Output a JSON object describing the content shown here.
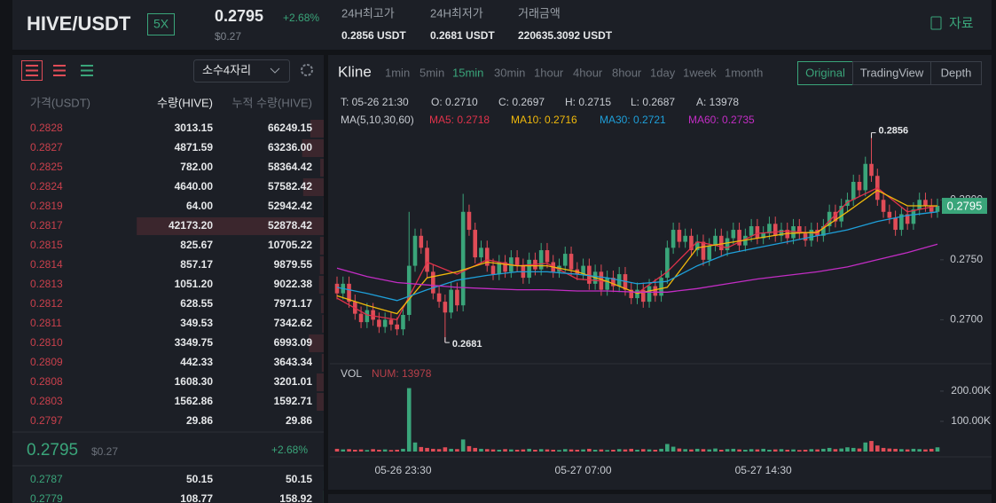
{
  "header": {
    "pair": "HIVE/USDT",
    "leverage": "5X",
    "price": "0.2795",
    "change": "+2.68%",
    "price_usd": "$0.27",
    "stats": [
      {
        "label": "24H최고가",
        "value": "0.2856 USDT"
      },
      {
        "label": "24H최저가",
        "value": "0.2681 USDT"
      },
      {
        "label": "거래금액",
        "value": "220635.3092 USDT"
      }
    ],
    "docs": "자료"
  },
  "orderbook": {
    "precision": "소수4자리",
    "columns": [
      "가격(USDT)",
      "수량(HIVE)",
      "누적 수량(HIVE)"
    ],
    "asks": [
      [
        "0.2828",
        "3013.15",
        "66249.15"
      ],
      [
        "0.2827",
        "4871.59",
        "63236.00"
      ],
      [
        "0.2825",
        "782.00",
        "58364.42"
      ],
      [
        "0.2824",
        "4640.00",
        "57582.42"
      ],
      [
        "0.2819",
        "64.00",
        "52942.42"
      ],
      [
        "0.2817",
        "42173.20",
        "52878.42"
      ],
      [
        "0.2815",
        "825.67",
        "10705.22"
      ],
      [
        "0.2814",
        "857.17",
        "9879.55"
      ],
      [
        "0.2813",
        "1051.20",
        "9022.38"
      ],
      [
        "0.2812",
        "628.55",
        "7971.17"
      ],
      [
        "0.2811",
        "349.53",
        "7342.62"
      ],
      [
        "0.2810",
        "3349.75",
        "6993.09"
      ],
      [
        "0.2809",
        "442.33",
        "3643.34"
      ],
      [
        "0.2808",
        "1608.30",
        "3201.01"
      ],
      [
        "0.2803",
        "1562.86",
        "1592.71"
      ],
      [
        "0.2797",
        "29.86",
        "29.86"
      ]
    ],
    "last": {
      "price": "0.2795",
      "usd": "$0.27",
      "change": "+2.68%"
    },
    "bids": [
      [
        "0.2787",
        "50.15",
        "50.15"
      ],
      [
        "0.2779",
        "108.77",
        "158.92"
      ]
    ]
  },
  "chart_panel": {
    "title": "Kline",
    "intervals": [
      "1min",
      "5min",
      "15min",
      "30min",
      "1hour",
      "4hour",
      "8hour",
      "1day",
      "1week",
      "1month"
    ],
    "active_interval": "15min",
    "views": [
      "Original",
      "TradingView",
      "Depth"
    ],
    "active_view": "Original",
    "info": [
      "T: 05-26 21:30",
      "O: 0.2710",
      "C: 0.2697",
      "H: 0.2715",
      "L: 0.2687",
      "A: 13978"
    ],
    "ma_title": "MA(5,10,30,60)"
  },
  "chart_data": {
    "type": "candlestick",
    "up_color": "#3aa57a",
    "down_color": "#e04c57",
    "categories": [
      null,
      null,
      null,
      null,
      null,
      null,
      null,
      null,
      null,
      null,
      null,
      "05-26 23:30",
      null,
      null,
      null,
      null,
      null,
      null,
      null,
      null,
      null,
      null,
      null,
      null,
      null,
      null,
      null,
      null,
      null,
      null,
      null,
      null,
      null,
      null,
      null,
      null,
      null,
      null,
      null,
      null,
      null,
      "05-27 07:00",
      null,
      null,
      null,
      null,
      null,
      null,
      null,
      null,
      null,
      null,
      null,
      null,
      null,
      null,
      null,
      null,
      null,
      null,
      null,
      null,
      null,
      null,
      null,
      null,
      null,
      null,
      null,
      null,
      null,
      "05-27 14:30",
      null,
      null,
      null,
      null,
      null,
      null,
      null,
      null,
      null,
      null,
      null,
      null,
      null,
      null,
      null,
      null,
      null,
      null,
      null,
      null,
      null,
      null,
      null,
      null,
      null,
      null,
      null,
      null,
      null
    ],
    "ohlc": [
      [
        0.273,
        0.2736,
        0.2717,
        0.2722
      ],
      [
        0.2722,
        0.2736,
        0.2717,
        0.273
      ],
      [
        0.273,
        0.2736,
        0.271,
        0.2715
      ],
      [
        0.2715,
        0.2721,
        0.27,
        0.2705
      ],
      [
        0.2705,
        0.2711,
        0.2693,
        0.2698
      ],
      [
        0.2698,
        0.2714,
        0.2693,
        0.2708
      ],
      [
        0.2708,
        0.2714,
        0.2695,
        0.27
      ],
      [
        0.27,
        0.2706,
        0.2689,
        0.2694
      ],
      [
        0.2694,
        0.2706,
        0.2689,
        0.27
      ],
      [
        0.27,
        0.2706,
        0.2691,
        0.2696
      ],
      [
        0.2696,
        0.2702,
        0.2687,
        0.2692
      ],
      [
        0.2692,
        0.271,
        0.2687,
        0.2704
      ],
      [
        0.2704,
        0.279,
        0.2699,
        0.2745
      ],
      [
        0.2745,
        0.2776,
        0.274,
        0.277
      ],
      [
        0.277,
        0.2776,
        0.2755,
        0.276
      ],
      [
        0.276,
        0.2766,
        0.2735,
        0.274
      ],
      [
        0.274,
        0.2746,
        0.2717,
        0.2722
      ],
      [
        0.2722,
        0.2728,
        0.271,
        0.2715
      ],
      [
        0.2715,
        0.2721,
        0.2681,
        0.2706
      ],
      [
        0.2706,
        0.2731,
        0.2701,
        0.2725
      ],
      [
        0.2725,
        0.2731,
        0.2707,
        0.2712
      ],
      [
        0.2712,
        0.2805,
        0.2707,
        0.279
      ],
      [
        0.279,
        0.2796,
        0.277,
        0.2775
      ],
      [
        0.2775,
        0.2781,
        0.2747,
        0.2752
      ],
      [
        0.2752,
        0.2766,
        0.2747,
        0.276
      ],
      [
        0.276,
        0.2766,
        0.274,
        0.2745
      ],
      [
        0.2745,
        0.2751,
        0.2733,
        0.2738
      ],
      [
        0.2738,
        0.2754,
        0.2733,
        0.2748
      ],
      [
        0.2748,
        0.2754,
        0.2735,
        0.274
      ],
      [
        0.274,
        0.2758,
        0.2735,
        0.2752
      ],
      [
        0.2752,
        0.2758,
        0.274,
        0.2745
      ],
      [
        0.2745,
        0.2751,
        0.273,
        0.2735
      ],
      [
        0.2735,
        0.2756,
        0.273,
        0.275
      ],
      [
        0.275,
        0.2756,
        0.2737,
        0.2742
      ],
      [
        0.2742,
        0.2764,
        0.2737,
        0.2758
      ],
      [
        0.2758,
        0.2764,
        0.2743,
        0.2748
      ],
      [
        0.2748,
        0.2754,
        0.2735,
        0.274
      ],
      [
        0.274,
        0.2751,
        0.2735,
        0.2745
      ],
      [
        0.2745,
        0.2761,
        0.274,
        0.2755
      ],
      [
        0.2755,
        0.2761,
        0.2737,
        0.2742
      ],
      [
        0.2742,
        0.2748,
        0.2733,
        0.2738
      ],
      [
        0.2738,
        0.2751,
        0.2733,
        0.2745
      ],
      [
        0.2745,
        0.2751,
        0.2725,
        0.273
      ],
      [
        0.273,
        0.2746,
        0.2725,
        0.274
      ],
      [
        0.274,
        0.2746,
        0.272,
        0.2725
      ],
      [
        0.2725,
        0.2741,
        0.272,
        0.2735
      ],
      [
        0.2735,
        0.2741,
        0.2723,
        0.2728
      ],
      [
        0.2728,
        0.2744,
        0.2723,
        0.2738
      ],
      [
        0.2738,
        0.2744,
        0.272,
        0.2725
      ],
      [
        0.2725,
        0.2731,
        0.2713,
        0.2718
      ],
      [
        0.2718,
        0.2731,
        0.2713,
        0.2725
      ],
      [
        0.2725,
        0.2731,
        0.271,
        0.2715
      ],
      [
        0.2715,
        0.2734,
        0.271,
        0.2728
      ],
      [
        0.2728,
        0.2734,
        0.2715,
        0.272
      ],
      [
        0.272,
        0.2741,
        0.2715,
        0.2735
      ],
      [
        0.2735,
        0.2766,
        0.273,
        0.276
      ],
      [
        0.276,
        0.2781,
        0.2755,
        0.2775
      ],
      [
        0.2775,
        0.2781,
        0.276,
        0.2765
      ],
      [
        0.2765,
        0.2776,
        0.276,
        0.277
      ],
      [
        0.277,
        0.2776,
        0.2753,
        0.2758
      ],
      [
        0.2758,
        0.2771,
        0.2753,
        0.2765
      ],
      [
        0.2765,
        0.2771,
        0.2745,
        0.275
      ],
      [
        0.275,
        0.2768,
        0.2745,
        0.2762
      ],
      [
        0.2762,
        0.2776,
        0.2757,
        0.277
      ],
      [
        0.277,
        0.2776,
        0.2753,
        0.2758
      ],
      [
        0.2758,
        0.2774,
        0.2753,
        0.2768
      ],
      [
        0.2768,
        0.2781,
        0.2763,
        0.2775
      ],
      [
        0.2775,
        0.2781,
        0.2757,
        0.2762
      ],
      [
        0.2762,
        0.2776,
        0.2757,
        0.277
      ],
      [
        0.277,
        0.2784,
        0.2765,
        0.2778
      ],
      [
        0.2778,
        0.2784,
        0.2763,
        0.2768
      ],
      [
        0.2768,
        0.2778,
        0.2763,
        0.2772
      ],
      [
        0.2772,
        0.2786,
        0.2767,
        0.278
      ],
      [
        0.278,
        0.2786,
        0.2765,
        0.277
      ],
      [
        0.277,
        0.2781,
        0.2765,
        0.2775
      ],
      [
        0.2775,
        0.2781,
        0.2763,
        0.2768
      ],
      [
        0.2768,
        0.2784,
        0.2763,
        0.2778
      ],
      [
        0.2778,
        0.2784,
        0.2767,
        0.2772
      ],
      [
        0.2772,
        0.2778,
        0.2761,
        0.2766
      ],
      [
        0.2766,
        0.2781,
        0.2761,
        0.2775
      ],
      [
        0.2775,
        0.2781,
        0.2765,
        0.277
      ],
      [
        0.277,
        0.2784,
        0.2765,
        0.2778
      ],
      [
        0.2778,
        0.2796,
        0.2773,
        0.279
      ],
      [
        0.279,
        0.2796,
        0.2777,
        0.2782
      ],
      [
        0.2782,
        0.2801,
        0.2777,
        0.2795
      ],
      [
        0.2795,
        0.2806,
        0.279,
        0.28
      ],
      [
        0.28,
        0.2821,
        0.2795,
        0.2815
      ],
      [
        0.2815,
        0.2821,
        0.2803,
        0.2808
      ],
      [
        0.2808,
        0.2836,
        0.2803,
        0.283
      ],
      [
        0.283,
        0.2856,
        0.2815,
        0.282
      ],
      [
        0.282,
        0.2826,
        0.2795,
        0.28
      ],
      [
        0.28,
        0.2806,
        0.2785,
        0.279
      ],
      [
        0.279,
        0.2796,
        0.278,
        0.2785
      ],
      [
        0.2785,
        0.2791,
        0.277,
        0.2775
      ],
      [
        0.2775,
        0.2794,
        0.277,
        0.2788
      ],
      [
        0.2788,
        0.2794,
        0.2775,
        0.278
      ],
      [
        0.278,
        0.2798,
        0.2775,
        0.2792
      ],
      [
        0.2792,
        0.2806,
        0.2787,
        0.28
      ],
      [
        0.28,
        0.2806,
        0.279,
        0.2795
      ],
      [
        0.2795,
        0.2801,
        0.2785,
        0.279
      ],
      [
        0.279,
        0.2801,
        0.2785,
        0.2795
      ]
    ],
    "ylim": [
      0.2667,
      0.2889
    ],
    "yticks": [
      {
        "value": 0.27,
        "label": "0.2700"
      },
      {
        "value": 0.275,
        "label": "0.2750"
      },
      {
        "value": 0.28,
        "label": "0.2800"
      }
    ],
    "ma": [
      {
        "name": "MA5: 0.2718",
        "color": "#e0324b",
        "x": [
          0,
          5,
          10,
          15,
          20,
          25,
          30,
          35,
          40,
          45,
          50,
          55,
          60,
          65,
          70,
          75,
          80,
          85,
          90,
          95,
          100
        ],
        "values": [
          0.2718,
          0.2704,
          0.27,
          0.2748,
          0.2738,
          0.275,
          0.2745,
          0.2747,
          0.2734,
          0.2732,
          0.2722,
          0.274,
          0.2765,
          0.276,
          0.2772,
          0.2774,
          0.2772,
          0.2798,
          0.281,
          0.279,
          0.2795
        ]
      },
      {
        "name": "MA10: 0.2716",
        "color": "#f0b90b",
        "x": [
          0,
          5,
          10,
          15,
          20,
          25,
          30,
          35,
          40,
          45,
          50,
          55,
          60,
          65,
          70,
          75,
          80,
          85,
          90,
          95,
          100
        ],
        "values": [
          0.272,
          0.2712,
          0.2705,
          0.2735,
          0.274,
          0.2748,
          0.2745,
          0.2745,
          0.274,
          0.2732,
          0.2722,
          0.2727,
          0.276,
          0.2764,
          0.2768,
          0.2772,
          0.2773,
          0.279,
          0.2808,
          0.2795,
          0.2795
        ]
      },
      {
        "name": "MA30: 0.2721",
        "color": "#1e9fd9",
        "x": [
          0,
          5,
          10,
          15,
          20,
          25,
          30,
          35,
          40,
          45,
          50,
          55,
          60,
          65,
          70,
          75,
          80,
          85,
          90,
          95,
          100
        ],
        "values": [
          0.2727,
          0.2722,
          0.2716,
          0.2725,
          0.2733,
          0.2737,
          0.274,
          0.274,
          0.2738,
          0.2735,
          0.273,
          0.2732,
          0.2745,
          0.2755,
          0.276,
          0.2765,
          0.277,
          0.2775,
          0.2782,
          0.2787,
          0.279
        ]
      },
      {
        "name": "MA60: 0.2735",
        "color": "#c22dc4",
        "x": [
          0,
          5,
          10,
          15,
          20,
          25,
          30,
          35,
          40,
          45,
          50,
          55,
          60,
          65,
          70,
          75,
          80,
          85,
          90,
          95,
          100
        ],
        "values": [
          0.2743,
          0.2736,
          0.2731,
          0.2729,
          0.2727,
          0.2726,
          0.2725,
          0.2725,
          0.2724,
          0.2724,
          0.2723,
          0.2723,
          0.2726,
          0.273,
          0.2734,
          0.2737,
          0.274,
          0.2744,
          0.275,
          0.2756,
          0.2763
        ]
      }
    ],
    "high_label": 0.2856,
    "low_label": 0.2681,
    "last_price": 0.2795,
    "volume": {
      "label": "VOL",
      "info": "NUM: 13978",
      "ylim": [
        0,
        282000
      ],
      "yticks": [
        {
          "value": 100000,
          "label": "100.00K"
        },
        {
          "value": 200000,
          "label": "200.00K"
        }
      ],
      "values": [
        9000,
        7000,
        8000,
        6000,
        7000,
        5000,
        8000,
        6000,
        7000,
        5000,
        6000,
        9000,
        210000,
        30000,
        15000,
        12000,
        9000,
        8000,
        14000,
        9000,
        8000,
        40000,
        18000,
        12000,
        9000,
        8000,
        7000,
        6000,
        8000,
        7000,
        6000,
        7000,
        9000,
        6000,
        8000,
        7000,
        6000,
        5000,
        8000,
        7000,
        6000,
        7000,
        9000,
        6000,
        7000,
        5000,
        6000,
        8000,
        7000,
        9000,
        6000,
        8000,
        7000,
        6000,
        9000,
        25000,
        16000,
        10000,
        8000,
        7000,
        9000,
        8000,
        7000,
        10000,
        6000,
        8000,
        9000,
        7000,
        6000,
        8000,
        7000,
        9000,
        6000,
        7000,
        8000,
        6000,
        7000,
        5000,
        6000,
        8000,
        7000,
        9000,
        12000,
        8000,
        10000,
        14000,
        12000,
        10000,
        30000,
        35000,
        20000,
        12000,
        10000,
        9000,
        8000,
        7000,
        9000,
        8000,
        7000,
        9000,
        13978
      ]
    }
  }
}
